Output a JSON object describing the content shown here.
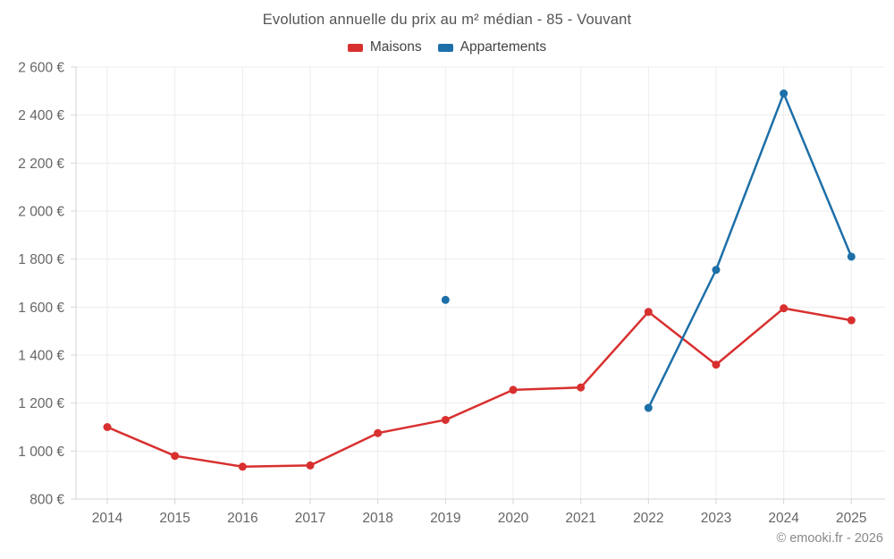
{
  "header": {
    "title": "Evolution annuelle du prix au m² médian - 85 - Vouvant"
  },
  "legend": [
    {
      "label": "Maisons",
      "color": "#d8302f"
    },
    {
      "label": "Appartements",
      "color": "#1d6fa8"
    }
  ],
  "footer": {
    "credit": "© emooki.fr - 2026"
  },
  "colors": {
    "maisons": "#d8302f",
    "appartements": "#1d6fa8",
    "grid": "#ececec",
    "axis": "#d6d6d6",
    "tick_label": "#666666"
  },
  "chart_data": {
    "type": "line",
    "title": "Evolution annuelle du prix au m² médian - 85 - Vouvant",
    "categories": [
      "2014",
      "2015",
      "2016",
      "2017",
      "2018",
      "2019",
      "2020",
      "2021",
      "2022",
      "2023",
      "2024",
      "2025"
    ],
    "series": [
      {
        "name": "Maisons",
        "color": "#d8302f",
        "values": [
          1100,
          980,
          935,
          940,
          1075,
          1130,
          1255,
          1265,
          1580,
          1360,
          1595,
          1545
        ]
      },
      {
        "name": "Appartements",
        "color": "#1d6fa8",
        "values": [
          null,
          null,
          null,
          null,
          null,
          1630,
          null,
          null,
          1180,
          1755,
          2490,
          1810
        ]
      }
    ],
    "xlabel": "",
    "ylabel": "",
    "ylim": [
      800,
      2600
    ],
    "ytick_step": 200,
    "y_unit": "€",
    "grid": true,
    "legend_position": "top"
  }
}
